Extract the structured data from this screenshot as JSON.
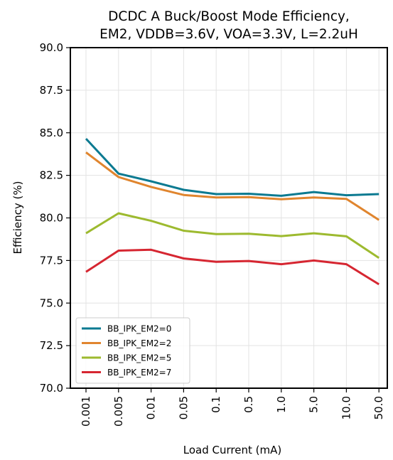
{
  "chart_data": {
    "type": "line",
    "title_lines": [
      "DCDC A Buck/Boost Mode Efficiency,",
      "EM2, VDDB=3.6V, VOA=3.3V, L=2.2uH"
    ],
    "xlabel": "Load Current (mA)",
    "ylabel": "Efficiency (%)",
    "categories": [
      "0.001",
      "0.005",
      "0.01",
      "0.05",
      "0.1",
      "0.5",
      "1.0",
      "5.0",
      "10.0",
      "50.0"
    ],
    "ylim": [
      70.0,
      90.0
    ],
    "yticks": [
      "70.0",
      "72.5",
      "75.0",
      "77.5",
      "80.0",
      "82.5",
      "85.0",
      "87.5",
      "90.0"
    ],
    "grid": true,
    "legend_position": "lower-left",
    "series": [
      {
        "name": "BB_IPK_EM2=0",
        "color": "#0b7a91",
        "values": [
          84.65,
          82.6,
          82.15,
          81.65,
          81.4,
          81.42,
          81.3,
          81.52,
          81.33,
          81.4
        ]
      },
      {
        "name": "BB_IPK_EM2=2",
        "color": "#e0852e",
        "values": [
          83.85,
          82.4,
          81.82,
          81.35,
          81.2,
          81.22,
          81.1,
          81.2,
          81.12,
          79.88
        ]
      },
      {
        "name": "BB_IPK_EM2=5",
        "color": "#9dba2f",
        "values": [
          79.1,
          80.27,
          79.83,
          79.25,
          79.05,
          79.07,
          78.93,
          79.1,
          78.92,
          77.65
        ]
      },
      {
        "name": "BB_IPK_EM2=7",
        "color": "#d62631",
        "values": [
          76.83,
          78.08,
          78.13,
          77.62,
          77.42,
          77.47,
          77.28,
          77.5,
          77.28,
          76.1
        ]
      }
    ]
  }
}
